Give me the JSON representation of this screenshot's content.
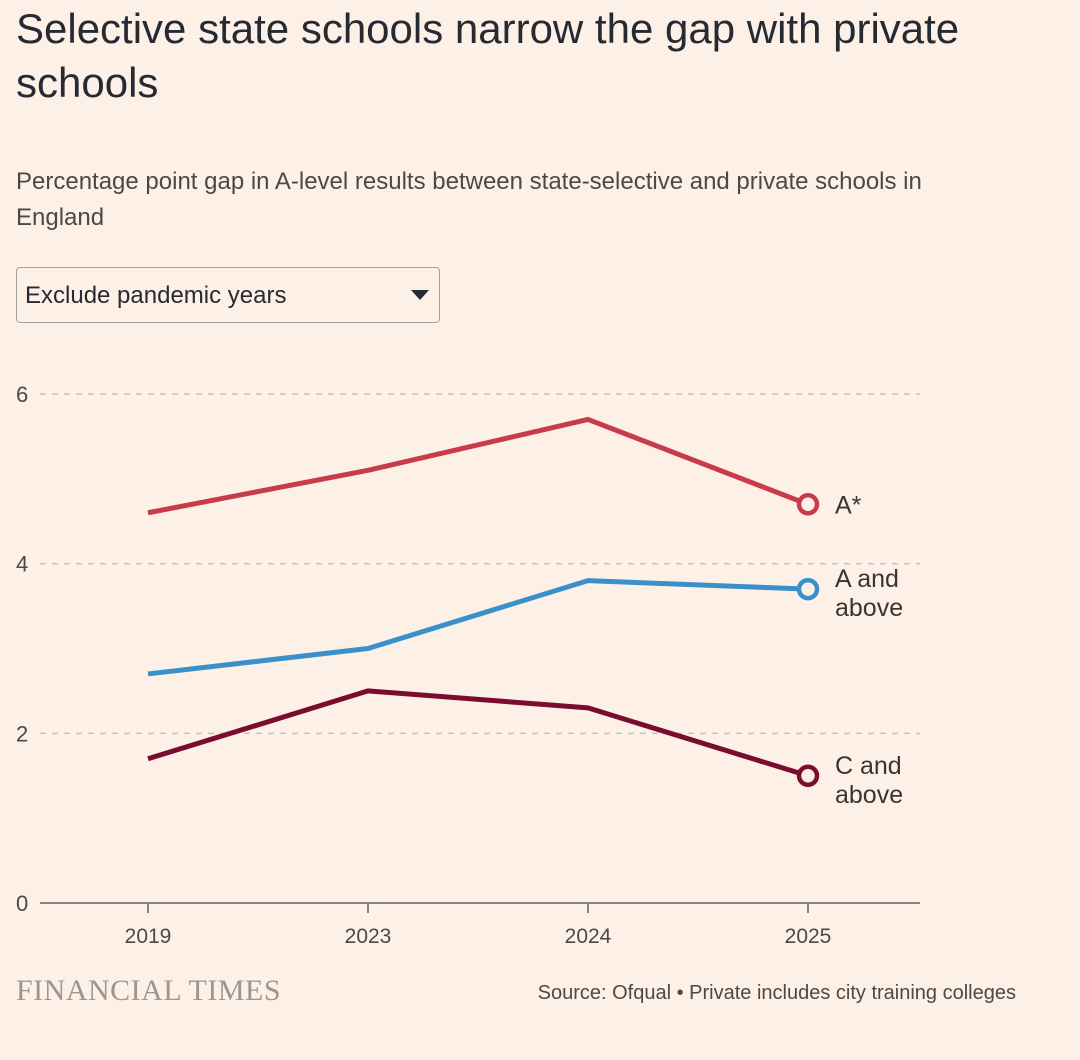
{
  "title": "Selective state schools narrow the gap with private schools",
  "subtitle": "Percentage point gap in A-level results between state-selective and private schools in England",
  "dropdown": {
    "selected": "Exclude pandemic years",
    "icon": "triangle-down-icon"
  },
  "footer": {
    "logo": "FINANCIAL TIMES",
    "source": "Source: Ofqual • Private includes city training colleges"
  },
  "colors": {
    "background": "#fdf1e7",
    "grid": "#c9c1ba",
    "axis": "#8a8380",
    "text": "#4d4845"
  },
  "chart_data": {
    "type": "line",
    "title": "Selective state schools narrow the gap with private schools",
    "subtitle": "Percentage point gap in A-level results between state-selective and private schools in England",
    "xlabel": "",
    "ylabel": "",
    "categories": [
      "2019",
      "2023",
      "2024",
      "2025"
    ],
    "ylim": [
      0,
      6
    ],
    "yticks": [
      "0",
      "2",
      "4",
      "6"
    ],
    "grid": true,
    "series": [
      {
        "name": "A*",
        "label_lines": [
          "A*"
        ],
        "color": "#c83b4b",
        "values": [
          4.6,
          5.1,
          5.7,
          4.7
        ]
      },
      {
        "name": "A and above",
        "label_lines": [
          "A and",
          "above"
        ],
        "color": "#3a91c9",
        "values": [
          2.7,
          3.0,
          3.8,
          3.7
        ]
      },
      {
        "name": "C and above",
        "label_lines": [
          "C and",
          "above"
        ],
        "color": "#7a0c2e",
        "values": [
          1.7,
          2.5,
          2.3,
          1.5
        ]
      }
    ]
  }
}
